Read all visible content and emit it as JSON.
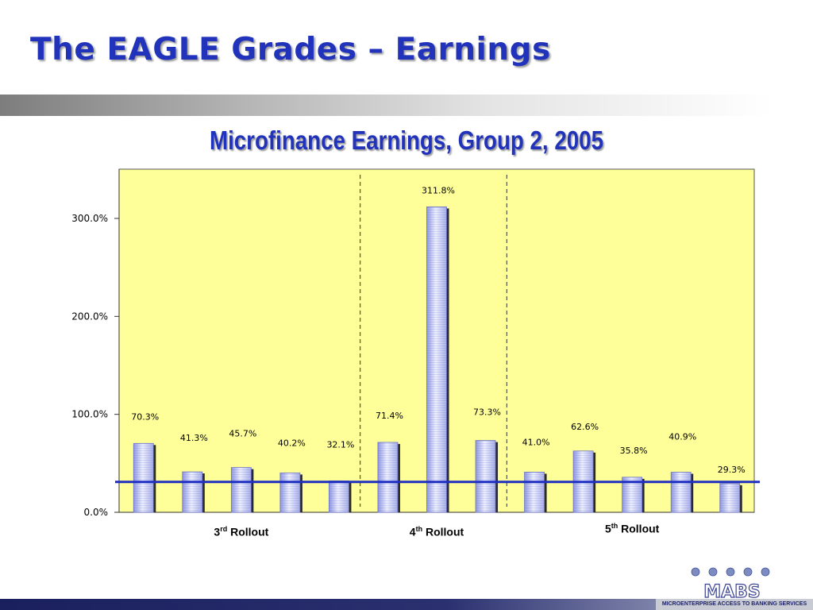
{
  "slide": {
    "title": "The EAGLE Grades – Earnings"
  },
  "chart_data": {
    "type": "bar",
    "title": "Microfinance Earnings, Group 2, 2005",
    "xlabel": "",
    "ylabel": "",
    "ylim": [
      0,
      350
    ],
    "yticks": [
      "0.0%",
      "100.0%",
      "200.0%",
      "300.0%"
    ],
    "ytick_values": [
      0,
      100,
      200,
      300
    ],
    "grid": false,
    "plot_background": "#ffff99",
    "bar_color": "#c8ccf0",
    "reference_line": {
      "value": 31,
      "color": "#1f2fbf"
    },
    "values": [
      70.3,
      41.3,
      45.7,
      40.2,
      32.1,
      71.4,
      311.8,
      73.3,
      41.0,
      62.6,
      35.8,
      40.9,
      29.3
    ],
    "data_labels": [
      "70.3%",
      "41.3%",
      "45.7%",
      "40.2%",
      "32.1%",
      "71.4%",
      "311.8%",
      "73.3%",
      "41.0%",
      "62.6%",
      "35.8%",
      "40.9%",
      "29.3%"
    ],
    "groups": [
      {
        "label_num": "3",
        "label_sup": "rd",
        "label_text": " Rollout",
        "start": 0,
        "end": 4
      },
      {
        "label_num": "4",
        "label_sup": "th",
        "label_text": " Rollout",
        "start": 5,
        "end": 7
      },
      {
        "label_num": "5",
        "label_sup": "th",
        "label_text": " Rollout",
        "start": 8,
        "end": 12
      }
    ]
  },
  "footer": {
    "logo_caption": "MICROENTERPRISE ACCESS TO BANKING SERVICES",
    "logo_text": "MABS"
  }
}
